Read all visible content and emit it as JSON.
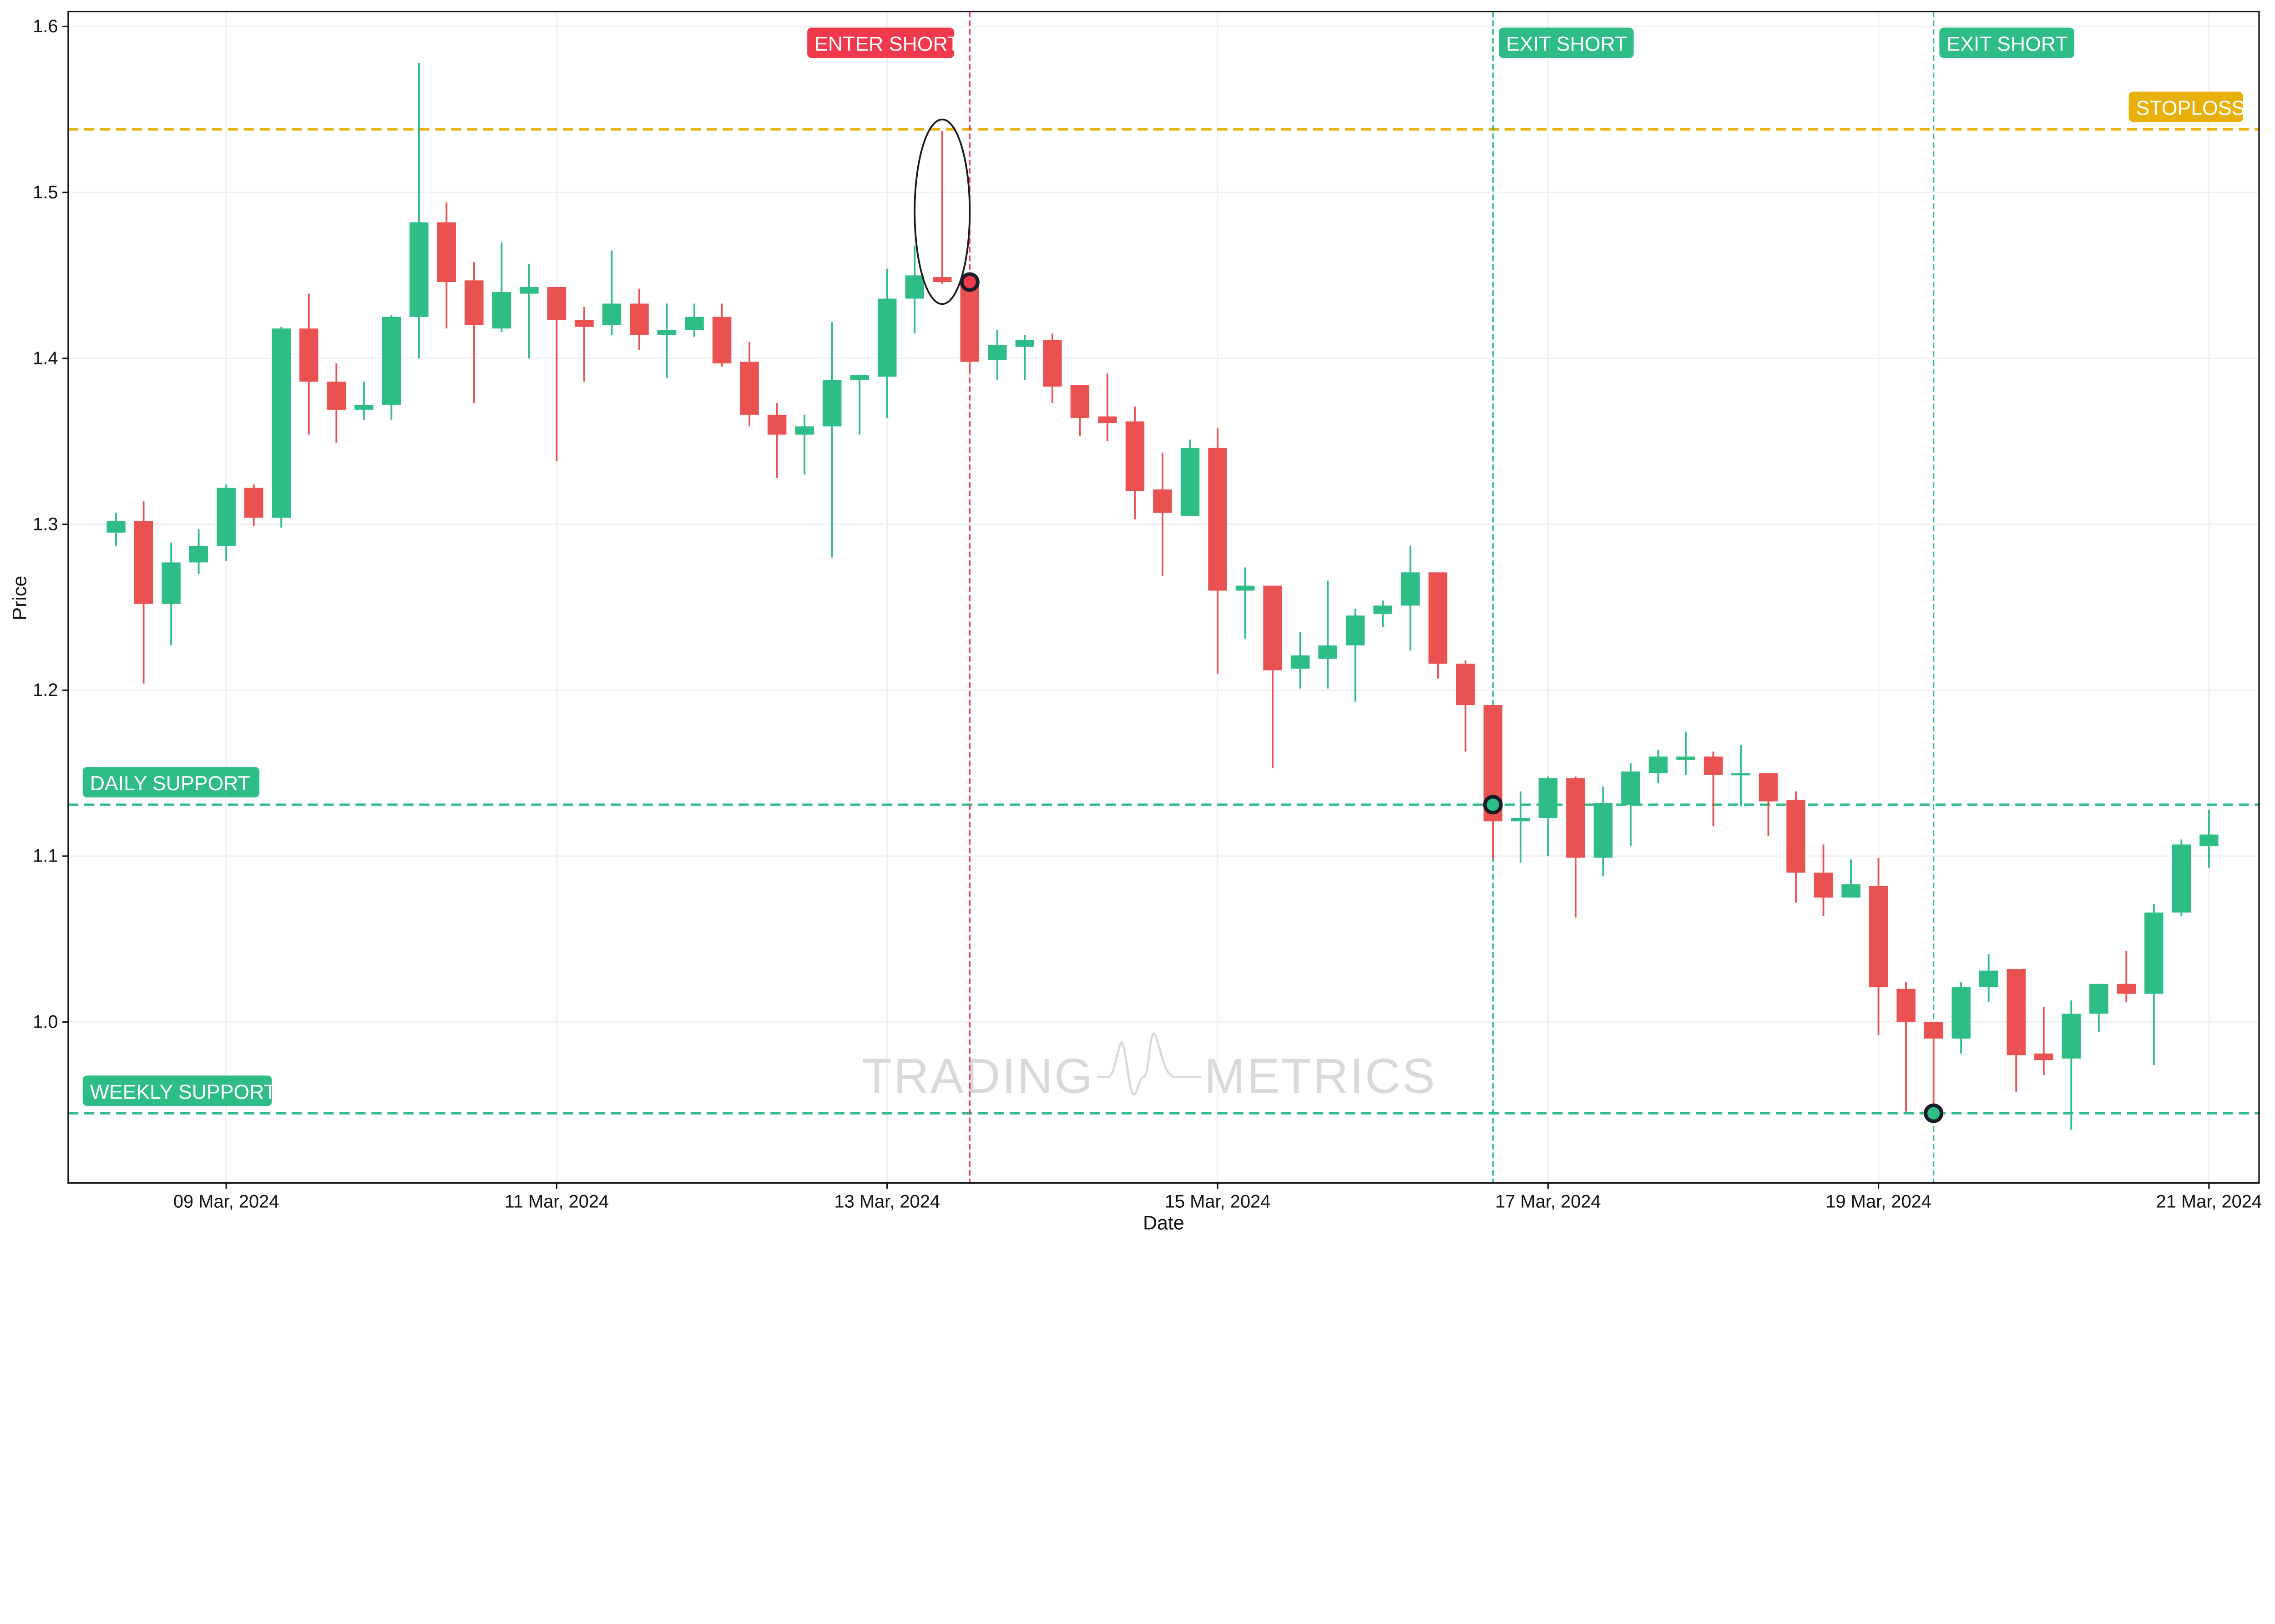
{
  "chart_data": {
    "type": "candlestick",
    "xlabel": "Date",
    "ylabel": "Price",
    "ylim": [
      0.903,
      1.609
    ],
    "grid": true,
    "x_ticks": [
      {
        "t": "2024-03-09T00:00",
        "label": "09 Mar, 2024"
      },
      {
        "t": "2024-03-11T00:00",
        "label": "11 Mar, 2024"
      },
      {
        "t": "2024-03-13T00:00",
        "label": "13 Mar, 2024"
      },
      {
        "t": "2024-03-15T00:00",
        "label": "15 Mar, 2024"
      },
      {
        "t": "2024-03-17T00:00",
        "label": "17 Mar, 2024"
      },
      {
        "t": "2024-03-19T00:00",
        "label": "19 Mar, 2024"
      },
      {
        "t": "2024-03-21T00:00",
        "label": "21 Mar, 2024"
      }
    ],
    "y_ticks": [
      "1.0",
      "1.1",
      "1.2",
      "1.3",
      "1.4",
      "1.5",
      "1.6"
    ],
    "colors": {
      "up": "#2ebd85",
      "down": "#ea5252",
      "stoploss": "#e8b10a",
      "support": "#2ebd85",
      "entry": "#f0394d",
      "exit": "#2ebd85"
    },
    "candle_fields": [
      "t",
      "open",
      "high",
      "low",
      "close"
    ],
    "candles": [
      [
        "2024-03-08T08:00",
        1.295,
        1.307,
        1.287,
        1.302
      ],
      [
        "2024-03-08T12:00",
        1.302,
        1.314,
        1.204,
        1.252
      ],
      [
        "2024-03-08T16:00",
        1.252,
        1.289,
        1.227,
        1.277
      ],
      [
        "2024-03-08T20:00",
        1.277,
        1.297,
        1.27,
        1.287
      ],
      [
        "2024-03-09T00:00",
        1.287,
        1.324,
        1.278,
        1.322
      ],
      [
        "2024-03-09T04:00",
        1.322,
        1.324,
        1.299,
        1.304
      ],
      [
        "2024-03-09T08:00",
        1.304,
        1.419,
        1.298,
        1.418
      ],
      [
        "2024-03-09T12:00",
        1.418,
        1.439,
        1.354,
        1.386
      ],
      [
        "2024-03-09T16:00",
        1.386,
        1.397,
        1.349,
        1.369
      ],
      [
        "2024-03-09T20:00",
        1.369,
        1.386,
        1.363,
        1.372
      ],
      [
        "2024-03-10T00:00",
        1.372,
        1.426,
        1.363,
        1.425
      ],
      [
        "2024-03-10T04:00",
        1.425,
        1.578,
        1.4,
        1.482
      ],
      [
        "2024-03-10T08:00",
        1.482,
        1.494,
        1.418,
        1.446
      ],
      [
        "2024-03-10T12:00",
        1.447,
        1.458,
        1.373,
        1.42
      ],
      [
        "2024-03-10T16:00",
        1.418,
        1.47,
        1.416,
        1.44
      ],
      [
        "2024-03-10T20:00",
        1.439,
        1.457,
        1.4,
        1.443
      ],
      [
        "2024-03-11T00:00",
        1.443,
        1.443,
        1.338,
        1.423
      ],
      [
        "2024-03-11T04:00",
        1.423,
        1.431,
        1.386,
        1.419
      ],
      [
        "2024-03-11T08:00",
        1.42,
        1.465,
        1.414,
        1.433
      ],
      [
        "2024-03-11T12:00",
        1.433,
        1.442,
        1.405,
        1.414
      ],
      [
        "2024-03-11T16:00",
        1.414,
        1.433,
        1.388,
        1.417
      ],
      [
        "2024-03-11T20:00",
        1.417,
        1.433,
        1.413,
        1.425
      ],
      [
        "2024-03-12T00:00",
        1.425,
        1.433,
        1.395,
        1.397
      ],
      [
        "2024-03-12T04:00",
        1.398,
        1.41,
        1.359,
        1.366
      ],
      [
        "2024-03-12T08:00",
        1.366,
        1.373,
        1.328,
        1.354
      ],
      [
        "2024-03-12T12:00",
        1.354,
        1.366,
        1.33,
        1.359
      ],
      [
        "2024-03-12T16:00",
        1.359,
        1.422,
        1.28,
        1.387
      ],
      [
        "2024-03-12T20:00",
        1.387,
        1.39,
        1.354,
        1.39
      ],
      [
        "2024-03-13T00:00",
        1.389,
        1.454,
        1.364,
        1.436
      ],
      [
        "2024-03-13T04:00",
        1.436,
        1.468,
        1.415,
        1.45
      ],
      [
        "2024-03-13T08:00",
        1.449,
        1.537,
        1.445,
        1.446
      ],
      [
        "2024-03-13T12:00",
        1.446,
        1.446,
        1.391,
        1.398
      ],
      [
        "2024-03-13T16:00",
        1.399,
        1.417,
        1.387,
        1.408
      ],
      [
        "2024-03-13T20:00",
        1.407,
        1.414,
        1.387,
        1.411
      ],
      [
        "2024-03-14T00:00",
        1.411,
        1.415,
        1.373,
        1.383
      ],
      [
        "2024-03-14T04:00",
        1.384,
        1.384,
        1.353,
        1.364
      ],
      [
        "2024-03-14T08:00",
        1.365,
        1.391,
        1.35,
        1.361
      ],
      [
        "2024-03-14T12:00",
        1.362,
        1.371,
        1.303,
        1.32
      ],
      [
        "2024-03-14T16:00",
        1.321,
        1.343,
        1.269,
        1.307
      ],
      [
        "2024-03-14T20:00",
        1.305,
        1.351,
        1.305,
        1.346
      ],
      [
        "2024-03-15T00:00",
        1.346,
        1.358,
        1.21,
        1.26
      ],
      [
        "2024-03-15T04:00",
        1.26,
        1.274,
        1.231,
        1.263
      ],
      [
        "2024-03-15T08:00",
        1.263,
        1.263,
        1.153,
        1.212
      ],
      [
        "2024-03-15T12:00",
        1.213,
        1.235,
        1.201,
        1.221
      ],
      [
        "2024-03-15T16:00",
        1.219,
        1.266,
        1.201,
        1.227
      ],
      [
        "2024-03-15T20:00",
        1.227,
        1.249,
        1.193,
        1.245
      ],
      [
        "2024-03-16T00:00",
        1.246,
        1.254,
        1.238,
        1.251
      ],
      [
        "2024-03-16T04:00",
        1.251,
        1.287,
        1.224,
        1.271
      ],
      [
        "2024-03-16T08:00",
        1.271,
        1.271,
        1.207,
        1.216
      ],
      [
        "2024-03-16T12:00",
        1.216,
        1.218,
        1.163,
        1.191
      ],
      [
        "2024-03-16T16:00",
        1.191,
        1.191,
        1.098,
        1.121
      ],
      [
        "2024-03-16T20:00",
        1.121,
        1.139,
        1.096,
        1.123
      ],
      [
        "2024-03-17T00:00",
        1.123,
        1.148,
        1.1,
        1.147
      ],
      [
        "2024-03-17T04:00",
        1.147,
        1.148,
        1.063,
        1.099
      ],
      [
        "2024-03-17T08:00",
        1.099,
        1.142,
        1.088,
        1.132
      ],
      [
        "2024-03-17T12:00",
        1.131,
        1.156,
        1.106,
        1.151
      ],
      [
        "2024-03-17T16:00",
        1.15,
        1.164,
        1.144,
        1.16
      ],
      [
        "2024-03-17T20:00",
        1.158,
        1.175,
        1.149,
        1.16
      ],
      [
        "2024-03-18T00:00",
        1.16,
        1.163,
        1.118,
        1.149
      ],
      [
        "2024-03-18T04:00",
        1.149,
        1.167,
        1.13,
        1.15
      ],
      [
        "2024-03-18T08:00",
        1.15,
        1.15,
        1.112,
        1.133
      ],
      [
        "2024-03-18T12:00",
        1.134,
        1.139,
        1.072,
        1.09
      ],
      [
        "2024-03-18T16:00",
        1.09,
        1.107,
        1.064,
        1.075
      ],
      [
        "2024-03-18T20:00",
        1.075,
        1.098,
        1.075,
        1.083
      ],
      [
        "2024-03-19T00:00",
        1.082,
        1.099,
        0.992,
        1.021
      ],
      [
        "2024-03-19T04:00",
        1.02,
        1.024,
        0.946,
        1.0
      ],
      [
        "2024-03-19T08:00",
        1.0,
        1.0,
        0.945,
        0.99
      ],
      [
        "2024-03-19T12:00",
        0.99,
        1.024,
        0.981,
        1.021
      ],
      [
        "2024-03-19T16:00",
        1.021,
        1.041,
        1.012,
        1.031
      ],
      [
        "2024-03-19T20:00",
        1.032,
        1.032,
        0.958,
        0.98
      ],
      [
        "2024-03-20T00:00",
        0.981,
        1.009,
        0.968,
        0.977
      ],
      [
        "2024-03-20T04:00",
        0.978,
        1.013,
        0.935,
        1.005
      ],
      [
        "2024-03-20T08:00",
        1.005,
        1.023,
        0.994,
        1.023
      ],
      [
        "2024-03-20T12:00",
        1.023,
        1.043,
        1.012,
        1.017
      ],
      [
        "2024-03-20T16:00",
        1.017,
        1.071,
        0.974,
        1.066
      ],
      [
        "2024-03-20T20:00",
        1.066,
        1.11,
        1.064,
        1.107
      ],
      [
        "2024-03-21T00:00",
        1.106,
        1.128,
        1.093,
        1.113
      ]
    ],
    "horizontal_lines": [
      {
        "label": "STOPLOSS",
        "price": 1.538,
        "color": "#e8b10a",
        "label_side": "right"
      },
      {
        "label": "DAILY SUPPORT",
        "price": 1.131,
        "color": "#2ebd85",
        "label_side": "left"
      },
      {
        "label": "WEEKLY SUPPORT",
        "price": 0.945,
        "color": "#2ebd85",
        "label_side": "left"
      }
    ],
    "signals": [
      {
        "label": "ENTER SHORT",
        "t": "2024-03-13T12:00",
        "price": 1.446,
        "color": "#f0394d",
        "marker_fill": "#f0394d"
      },
      {
        "label": "EXIT SHORT",
        "t": "2024-03-16T16:00",
        "price": 1.131,
        "color": "#2ebd85",
        "marker_fill": "#2ebd85"
      },
      {
        "label": "EXIT SHORT",
        "t": "2024-03-19T08:00",
        "price": 0.945,
        "color": "#2ebd85",
        "marker_fill": "#2ebd85"
      }
    ],
    "highlight_candle": "2024-03-13T08:00"
  },
  "watermark": {
    "left": "TRADING",
    "right": "METRICS"
  }
}
